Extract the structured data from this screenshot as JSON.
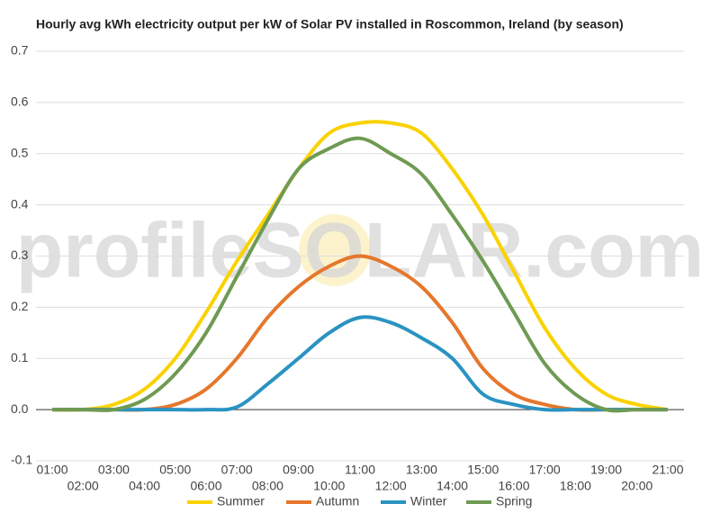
{
  "chart_data": {
    "type": "line",
    "title": "Hourly avg kWh electricity output per kW of Solar PV installed in Roscommon, Ireland (by season)",
    "watermark": "profileSOLAR.com",
    "categories": [
      "01:00",
      "02:00",
      "03:00",
      "04:00",
      "05:00",
      "06:00",
      "07:00",
      "08:00",
      "09:00",
      "10:00",
      "11:00",
      "12:00",
      "13:00",
      "14:00",
      "15:00",
      "16:00",
      "17:00",
      "18:00",
      "19:00",
      "20:00",
      "21:00"
    ],
    "series": [
      {
        "name": "Summer",
        "color": "#fad200",
        "values": [
          0,
          0,
          0.01,
          0.04,
          0.1,
          0.19,
          0.29,
          0.38,
          0.47,
          0.54,
          0.56,
          0.56,
          0.54,
          0.47,
          0.38,
          0.27,
          0.16,
          0.08,
          0.03,
          0.01,
          0
        ]
      },
      {
        "name": "Autumn",
        "color": "#e5772c",
        "values": [
          0,
          0,
          0,
          0,
          0.01,
          0.04,
          0.1,
          0.18,
          0.24,
          0.28,
          0.3,
          0.28,
          0.24,
          0.17,
          0.08,
          0.03,
          0.01,
          0,
          0,
          0,
          0
        ]
      },
      {
        "name": "Winter",
        "color": "#2a93c2",
        "values": [
          0,
          0,
          0,
          0,
          0,
          0,
          0.005,
          0.05,
          0.1,
          0.15,
          0.18,
          0.17,
          0.14,
          0.1,
          0.03,
          0.01,
          0,
          0,
          0,
          0,
          0
        ]
      },
      {
        "name": "Spring",
        "color": "#6f9a53",
        "values": [
          0,
          0,
          0,
          0.02,
          0.07,
          0.15,
          0.26,
          0.37,
          0.47,
          0.51,
          0.53,
          0.5,
          0.46,
          0.38,
          0.29,
          0.19,
          0.09,
          0.03,
          0,
          0,
          0
        ]
      }
    ],
    "ylim": [
      -0.1,
      0.7
    ],
    "yticks": [
      -0.1,
      {
        "value": 0,
        "label": "0.0"
      },
      0.1,
      0.2,
      0.3,
      0.4,
      0.5,
      0.6,
      0.7
    ],
    "grid": true,
    "legend": "bottom"
  }
}
